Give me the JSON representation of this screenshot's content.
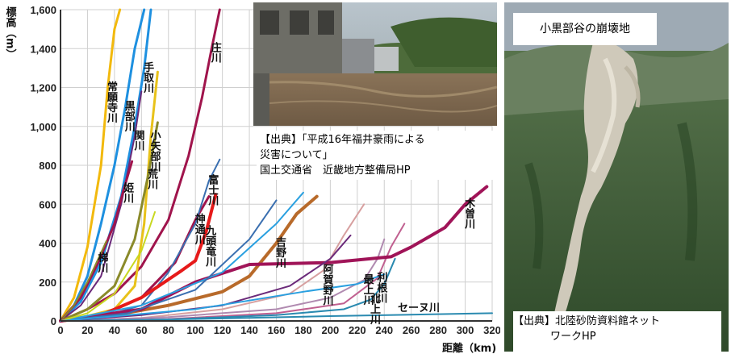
{
  "chart_data": {
    "type": "line",
    "xlabel": "距離（km)",
    "ylabel": "標高（m）",
    "xlim": [
      0,
      320
    ],
    "ylim": [
      0,
      1600
    ],
    "xticks": [
      0,
      20,
      40,
      60,
      80,
      100,
      120,
      140,
      160,
      180,
      200,
      220,
      240,
      260,
      280,
      300,
      320
    ],
    "yticks": [
      0,
      200,
      400,
      600,
      800,
      1000,
      1200,
      1400,
      1600
    ],
    "grid": true,
    "series": [
      {
        "name": "常願寺川",
        "color": "#f2b90d",
        "width": 3,
        "x": [
          0,
          10,
          20,
          30,
          35,
          40,
          44
        ],
        "y": [
          0,
          120,
          380,
          800,
          1200,
          1500,
          1600
        ]
      },
      {
        "name": "黒部川",
        "color": "#1e90e0",
        "width": 3,
        "x": [
          0,
          10,
          20,
          30,
          40,
          48,
          55,
          62
        ],
        "y": [
          0,
          80,
          230,
          500,
          800,
          1100,
          1400,
          1600
        ]
      },
      {
        "name": "手取川",
        "color": "#1e90e0",
        "width": 3,
        "x": [
          0,
          15,
          30,
          45,
          55,
          62,
          67
        ],
        "y": [
          0,
          100,
          300,
          640,
          1000,
          1300,
          1600
        ]
      },
      {
        "name": "庄川",
        "color": "#a0144c",
        "width": 3,
        "x": [
          0,
          20,
          40,
          60,
          80,
          95,
          105,
          112,
          118
        ],
        "y": [
          0,
          60,
          140,
          280,
          520,
          850,
          1150,
          1400,
          1600
        ]
      },
      {
        "name": "小矢部川",
        "color": "#e8c21a",
        "width": 3,
        "x": [
          0,
          20,
          40,
          55,
          62,
          67,
          72
        ],
        "y": [
          0,
          25,
          60,
          180,
          500,
          950,
          1280
        ]
      },
      {
        "name": "関川",
        "color": "#6b2a7a",
        "width": 2,
        "x": [
          0,
          15,
          30,
          45,
          55,
          60
        ],
        "y": [
          0,
          80,
          230,
          600,
          950,
          1180
        ]
      },
      {
        "name": "荒川",
        "color": "#8a8a2a",
        "width": 3,
        "x": [
          0,
          20,
          40,
          55,
          65,
          72
        ],
        "y": [
          0,
          60,
          180,
          420,
          750,
          1020
        ]
      },
      {
        "name": "姫川",
        "color": "#a0144c",
        "width": 3,
        "x": [
          0,
          15,
          28,
          40,
          47,
          53
        ],
        "y": [
          0,
          120,
          300,
          500,
          680,
          820
        ]
      },
      {
        "name": "梯川",
        "color": "#8a8a2a",
        "width": 2,
        "x": [
          0,
          10,
          20,
          28,
          34
        ],
        "y": [
          0,
          80,
          200,
          320,
          410
        ]
      },
      {
        "name": "神通川",
        "color": "#a0144c",
        "width": 3,
        "x": [
          0,
          30,
          60,
          85,
          100,
          110
        ],
        "y": [
          0,
          30,
          120,
          300,
          520,
          640
        ]
      },
      {
        "name": "富士川",
        "color": "#3a6fb0",
        "width": 2,
        "x": [
          0,
          30,
          60,
          80,
          100,
          110,
          118
        ],
        "y": [
          0,
          20,
          80,
          250,
          500,
          720,
          830
        ]
      },
      {
        "name": "九頭竜川",
        "color": "#e61a1a",
        "width": 4,
        "x": [
          0,
          30,
          60,
          90,
          100,
          108,
          115
        ],
        "y": [
          0,
          30,
          120,
          260,
          310,
          460,
          650
        ]
      },
      {
        "name": "吉野川",
        "color": "#b86a2a",
        "width": 4,
        "x": [
          0,
          40,
          80,
          120,
          140,
          160,
          175,
          190
        ],
        "y": [
          0,
          30,
          80,
          150,
          230,
          400,
          550,
          640
        ]
      },
      {
        "name": "阿賀野川",
        "color": "#d7a0a0",
        "width": 2,
        "x": [
          0,
          60,
          120,
          170,
          195,
          210,
          225
        ],
        "y": [
          0,
          15,
          60,
          140,
          260,
          440,
          600
        ]
      },
      {
        "name": "最上川",
        "color": "#b08ab0",
        "width": 2,
        "x": [
          0,
          80,
          160,
          200,
          225,
          235,
          240
        ],
        "y": [
          0,
          20,
          60,
          120,
          210,
          320,
          420
        ]
      },
      {
        "name": "利根川",
        "color": "#c06090",
        "width": 2,
        "x": [
          0,
          80,
          160,
          210,
          235,
          245,
          255
        ],
        "y": [
          0,
          10,
          40,
          90,
          220,
          380,
          500
        ]
      },
      {
        "name": "北上川",
        "color": "#2a8ab0",
        "width": 2,
        "x": [
          0,
          80,
          160,
          210,
          230,
          240,
          248
        ],
        "y": [
          0,
          8,
          30,
          60,
          110,
          190,
          320
        ]
      },
      {
        "name": "木曽川",
        "color": "#a01458",
        "width": 4,
        "x": [
          0,
          60,
          100,
          140,
          200,
          245,
          260,
          275,
          285,
          300,
          316
        ],
        "y": [
          0,
          60,
          200,
          290,
          300,
          330,
          380,
          440,
          480,
          600,
          690
        ]
      },
      {
        "name": "セーヌ川",
        "color": "#2a8ab0",
        "width": 2,
        "x": [
          0,
          100,
          200,
          320
        ],
        "y": [
          0,
          10,
          25,
          40
        ]
      },
      {
        "name": "",
        "color": "#2aa0e0",
        "width": 2,
        "x": [
          0,
          60,
          120,
          160,
          180
        ],
        "y": [
          0,
          80,
          250,
          500,
          660
        ]
      },
      {
        "name": "",
        "color": "#3a6fb0",
        "width": 2,
        "x": [
          0,
          50,
          100,
          140,
          160
        ],
        "y": [
          0,
          40,
          160,
          420,
          620
        ]
      },
      {
        "name": "",
        "color": "#c8d820",
        "width": 2,
        "x": [
          0,
          20,
          40,
          60,
          70
        ],
        "y": [
          0,
          40,
          140,
          360,
          560
        ]
      },
      {
        "name": "",
        "color": "#6b2a7a",
        "width": 2,
        "x": [
          0,
          60,
          120,
          170,
          200,
          215
        ],
        "y": [
          0,
          30,
          80,
          180,
          320,
          440
        ]
      },
      {
        "name": "",
        "color": "#2aa0e0",
        "width": 2,
        "x": [
          0,
          100,
          180,
          220,
          240
        ],
        "y": [
          0,
          60,
          150,
          190,
          240
        ]
      }
    ]
  },
  "captions": {
    "flood_source_line1": "【出典】「平成16年福井豪雨による",
    "flood_source_line2": "災害について」",
    "flood_source_line3": "国土交通省　近畿地方整備局HP",
    "landslide_title": "小黒部谷の崩壊地",
    "landslide_source_line1": "【出典】北陸砂防資料館ネット",
    "landslide_source_line2": "ワークHP"
  }
}
